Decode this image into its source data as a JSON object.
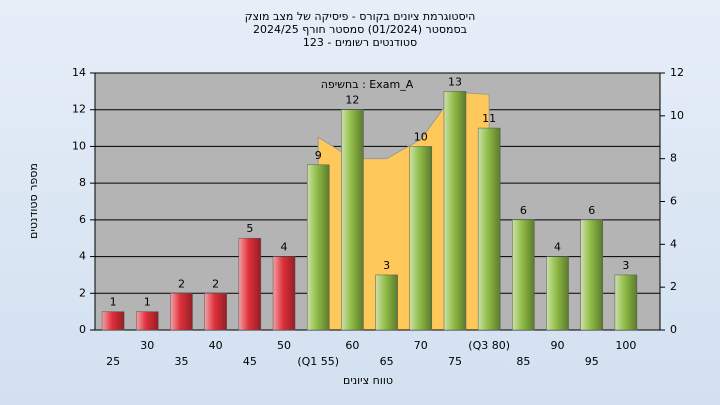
{
  "chart_data": {
    "type": "bar",
    "title_lines": [
      "היסטוגרמת ציונים בקורס - פיסיקה של מצב מוצק",
      "בסמסטר  (01/2024)  סמסטר חורף 2024/25",
      "סטודנטים רשומים - 123"
    ],
    "annotation": "בחשיפה : Exam_A",
    "x_label": "טווח ציונים",
    "y_label": "מספר סטודנטים",
    "categories": [
      "25",
      "30",
      "35",
      "40",
      "45",
      "50",
      "(Q1 55)",
      "60",
      "65",
      "70",
      "75",
      "(Q3 80)",
      "85",
      "90",
      "95",
      "100"
    ],
    "values": [
      1,
      1,
      2,
      2,
      5,
      4,
      9,
      12,
      3,
      10,
      13,
      11,
      6,
      4,
      6,
      3
    ],
    "colors": [
      "#e0303a",
      "#e0303a",
      "#e0303a",
      "#e0303a",
      "#e0303a",
      "#e0303a",
      "#8fbc45",
      "#8fbc45",
      "#8fbc45",
      "#8fbc45",
      "#8fbc45",
      "#8fbc45",
      "#8fbc45",
      "#8fbc45",
      "#8fbc45",
      "#8fbc45"
    ],
    "area": {
      "axis": "y2",
      "color": "#ffc85a",
      "values": [
        null,
        null,
        null,
        null,
        null,
        null,
        9,
        8,
        8,
        8.9,
        11.1,
        11,
        null,
        null,
        null,
        null
      ]
    },
    "ylim": [
      0,
      14
    ],
    "yticks": [
      0,
      2,
      4,
      6,
      8,
      10,
      12,
      14
    ],
    "y2lim": [
      0,
      12
    ],
    "y2ticks": [
      0,
      2,
      4,
      6,
      8,
      10,
      12
    ],
    "grid": true
  }
}
